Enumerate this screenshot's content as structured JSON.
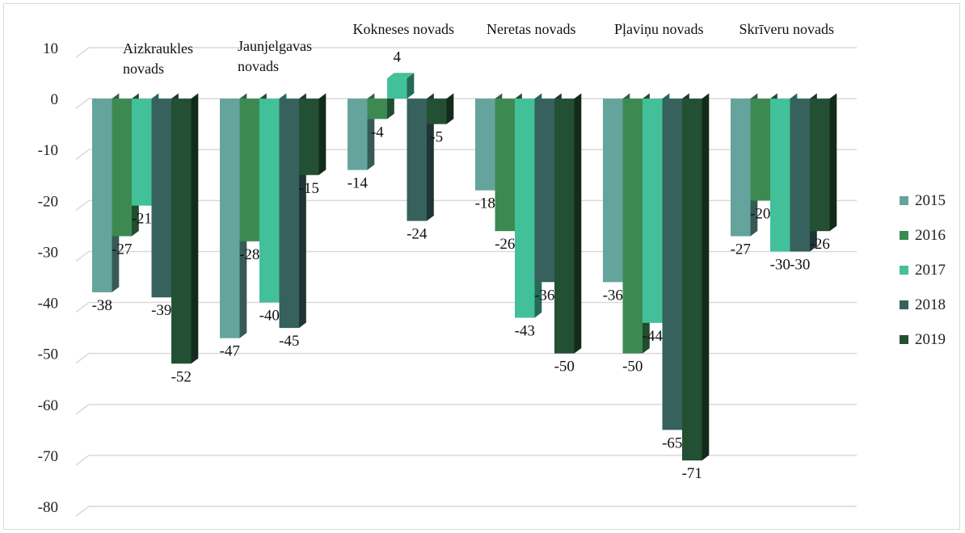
{
  "chart_data": {
    "type": "bar",
    "categories": [
      "Aizkraukles novads",
      "Jaunjelgavas novads",
      "Kokneses novads",
      "Neretas novads",
      "Pļaviņu novads",
      "Skrīveru novads"
    ],
    "category_label_lines": [
      [
        "Aizkraukles",
        "novads"
      ],
      [
        "Jaunjelgavas",
        "novads"
      ],
      [
        "Kokneses novads"
      ],
      [
        "Neretas novads"
      ],
      [
        "Pļaviņu novads"
      ],
      [
        "Skrīveru novads"
      ]
    ],
    "series": [
      {
        "name": "2015",
        "color": "#64a49c",
        "values": [
          -38,
          -47,
          -14,
          -18,
          -36,
          -27
        ]
      },
      {
        "name": "2016",
        "color": "#3c8a52",
        "values": [
          -27,
          -28,
          -4,
          -26,
          -50,
          -20
        ]
      },
      {
        "name": "2017",
        "color": "#42c09a",
        "values": [
          -21,
          -40,
          4,
          -43,
          -44,
          -30
        ]
      },
      {
        "name": "2018",
        "color": "#36615c",
        "values": [
          -39,
          -45,
          -24,
          -36,
          -65,
          -30
        ]
      },
      {
        "name": "2019",
        "color": "#234f33",
        "values": [
          -52,
          -15,
          -5,
          -50,
          -71,
          -26
        ]
      }
    ],
    "yticks": [
      "10",
      "0",
      "-10",
      "-20",
      "-30",
      "-40",
      "-50",
      "-60",
      "-70",
      "-80"
    ],
    "ylim": [
      -80,
      10
    ],
    "grid": true,
    "legend": "right",
    "title": "",
    "xlabel": "",
    "ylabel": ""
  }
}
